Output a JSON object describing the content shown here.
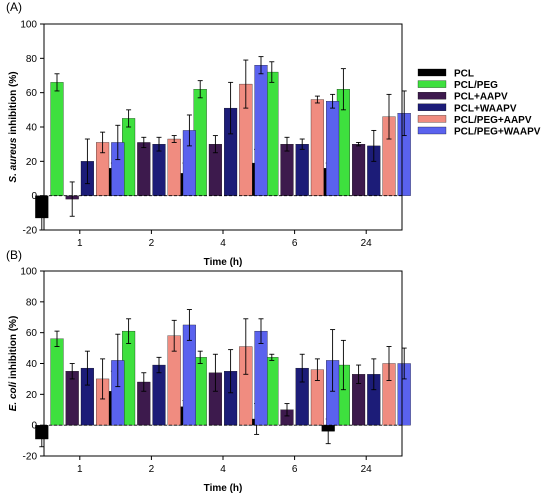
{
  "legend": {
    "placement": "right",
    "entries": [
      {
        "name": "PCL",
        "color": "#000000"
      },
      {
        "name": "PCL/PEG",
        "color": "#3ee03e"
      },
      {
        "name": "PCL+AAPV",
        "color": "#3d1a4d"
      },
      {
        "name": "PCL+WAAPV",
        "color": "#1c1c78"
      },
      {
        "name": "PCL/PEG+AAPV",
        "color": "#f08c80"
      },
      {
        "name": "PCL/PEG+WAAPV",
        "color": "#5a62ee"
      }
    ]
  },
  "chart_data": [
    {
      "type": "bar",
      "panel_label": "(A)",
      "ylabel_italic": "S. aureus",
      "ylabel_rest": " inhibition (%)",
      "xlabel": "Time (h)",
      "ylim": [
        -20,
        100
      ],
      "yticks": [
        -20,
        0,
        20,
        40,
        60,
        80,
        100
      ],
      "categories": [
        "1",
        "2",
        "4",
        "6",
        "24"
      ],
      "series": [
        {
          "name": "PCL",
          "values": [
            -13,
            16,
            13,
            19,
            16
          ],
          "errors": [
            7,
            3,
            6,
            8,
            3
          ]
        },
        {
          "name": "PCL/PEG",
          "values": [
            66,
            45,
            62,
            72,
            62
          ],
          "errors": [
            5,
            5,
            5,
            6,
            12
          ]
        },
        {
          "name": "PCL+AAPV",
          "values": [
            -2,
            31,
            30,
            30,
            30
          ],
          "errors": [
            10,
            3,
            5,
            4,
            1
          ]
        },
        {
          "name": "PCL+WAAPV",
          "values": [
            20,
            30,
            51,
            30,
            29
          ],
          "errors": [
            13,
            4,
            15,
            3,
            9
          ]
        },
        {
          "name": "PCL/PEG+AAPV",
          "values": [
            31,
            33,
            65,
            56,
            46
          ],
          "errors": [
            6,
            2,
            14,
            2,
            13
          ]
        },
        {
          "name": "PCL/PEG+WAAPV",
          "values": [
            31,
            38,
            76,
            55,
            48
          ],
          "errors": [
            10,
            9,
            5,
            4,
            13
          ]
        }
      ]
    },
    {
      "type": "bar",
      "panel_label": "(B)",
      "ylabel_italic": "E. coli",
      "ylabel_rest": " inhibition (%)",
      "xlabel": "Time (h)",
      "ylim": [
        -20,
        100
      ],
      "yticks": [
        -20,
        0,
        20,
        40,
        60,
        80,
        100
      ],
      "categories": [
        "1",
        "2",
        "4",
        "6",
        "24"
      ],
      "series": [
        {
          "name": "PCL",
          "values": [
            -9,
            22,
            12,
            4,
            -4
          ],
          "errors": [
            5,
            13,
            4,
            10,
            8
          ]
        },
        {
          "name": "PCL/PEG",
          "values": [
            56,
            61,
            44,
            44,
            39
          ],
          "errors": [
            5,
            8,
            4,
            2,
            16
          ]
        },
        {
          "name": "PCL+AAPV",
          "values": [
            35,
            28,
            34,
            10,
            33
          ],
          "errors": [
            5,
            6,
            12,
            4,
            6
          ]
        },
        {
          "name": "PCL+WAAPV",
          "values": [
            37,
            39,
            35,
            37,
            33
          ],
          "errors": [
            11,
            5,
            14,
            9,
            10
          ]
        },
        {
          "name": "PCL/PEG+AAPV",
          "values": [
            30,
            58,
            51,
            36,
            40
          ],
          "errors": [
            13,
            10,
            18,
            7,
            11
          ]
        },
        {
          "name": "PCL/PEG+WAAPV",
          "values": [
            42,
            65,
            61,
            42,
            40
          ],
          "errors": [
            17,
            10,
            8,
            20,
            10
          ]
        }
      ]
    }
  ]
}
